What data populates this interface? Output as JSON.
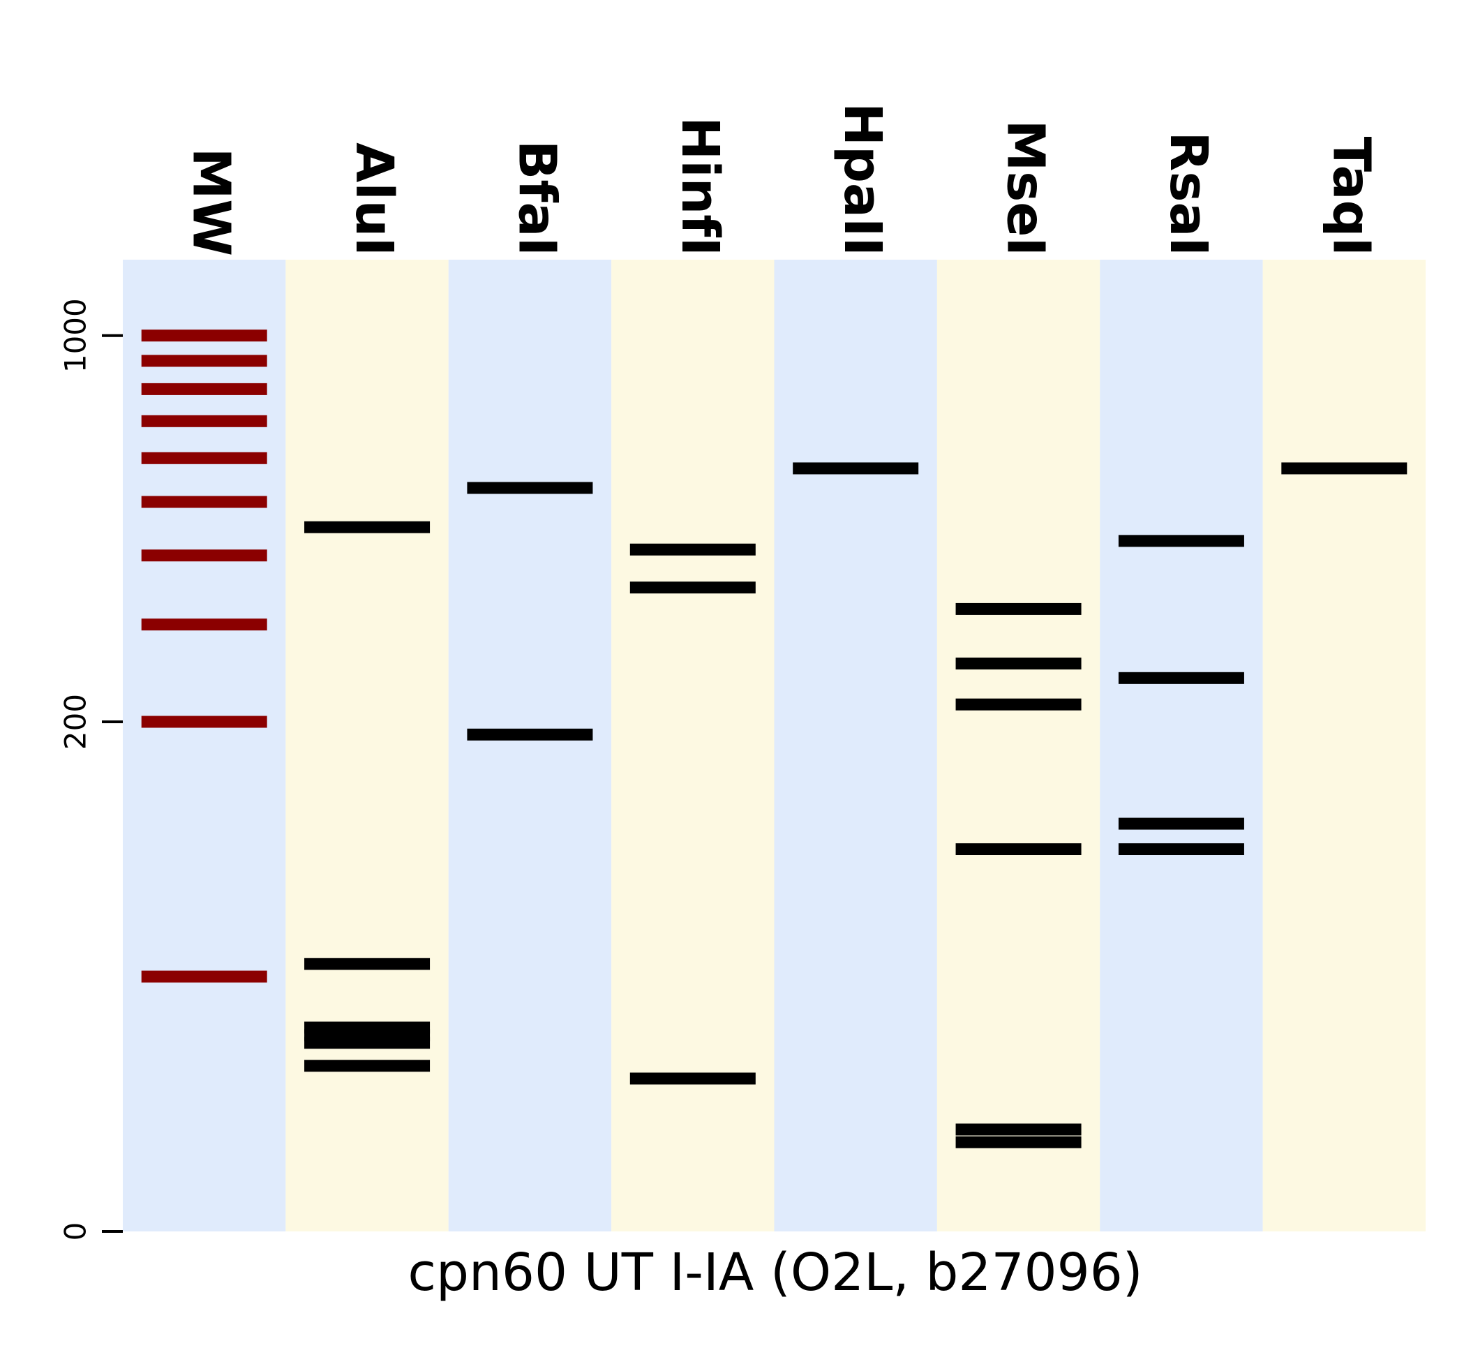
{
  "chart_data": {
    "type": "gel",
    "xlabel": "cpn60 UT I-IA (O2L, b27096)",
    "ylabel": "",
    "yticks": [
      "0",
      "200",
      "1000"
    ],
    "lanes": [
      "MW",
      "AluI",
      "BfaI",
      "HinfI",
      "HpaII",
      "MseI",
      "RsaI",
      "TaqI"
    ],
    "colors": {
      "lane_blue": "#e0ebfc",
      "lane_yellow": "#fdf9e2",
      "marker_band": "#8b0000",
      "sample_band": "#000000"
    },
    "ladder_bp": [
      1000,
      900,
      800,
      700,
      600,
      500,
      400,
      300,
      200,
      100
    ],
    "bands": [
      {
        "lane": "MW",
        "bp": 1000,
        "color": "marker"
      },
      {
        "lane": "MW",
        "bp": 900,
        "color": "marker"
      },
      {
        "lane": "MW",
        "bp": 800,
        "color": "marker"
      },
      {
        "lane": "MW",
        "bp": 700,
        "color": "marker"
      },
      {
        "lane": "MW",
        "bp": 600,
        "color": "marker"
      },
      {
        "lane": "MW",
        "bp": 500,
        "color": "marker"
      },
      {
        "lane": "MW",
        "bp": 400,
        "color": "marker"
      },
      {
        "lane": "MW",
        "bp": 300,
        "color": "marker"
      },
      {
        "lane": "MW",
        "bp": 200,
        "color": "marker"
      },
      {
        "lane": "MW",
        "bp": 100,
        "color": "marker"
      },
      {
        "lane": "AluI",
        "bp": 450
      },
      {
        "lane": "AluI",
        "bp": 105
      },
      {
        "lane": "AluI",
        "bp": 80
      },
      {
        "lane": "AluI",
        "bp": 77
      },
      {
        "lane": "AluI",
        "bp": 74
      },
      {
        "lane": "AluI",
        "bp": 65
      },
      {
        "lane": "BfaI",
        "bp": 530
      },
      {
        "lane": "BfaI",
        "bp": 195
      },
      {
        "lane": "HinfI",
        "bp": 410
      },
      {
        "lane": "HinfI",
        "bp": 350
      },
      {
        "lane": "HinfI",
        "bp": 60
      },
      {
        "lane": "HpaII",
        "bp": 575
      },
      {
        "lane": "MseI",
        "bp": 320
      },
      {
        "lane": "MseI",
        "bp": 255
      },
      {
        "lane": "MseI",
        "bp": 215
      },
      {
        "lane": "MseI",
        "bp": 150
      },
      {
        "lane": "MseI",
        "bp": 40
      },
      {
        "lane": "MseI",
        "bp": 35
      },
      {
        "lane": "RsaI",
        "bp": 425
      },
      {
        "lane": "RsaI",
        "bp": 240
      },
      {
        "lane": "RsaI",
        "bp": 160
      },
      {
        "lane": "RsaI",
        "bp": 150
      },
      {
        "lane": "TaqI",
        "bp": 575
      }
    ]
  }
}
